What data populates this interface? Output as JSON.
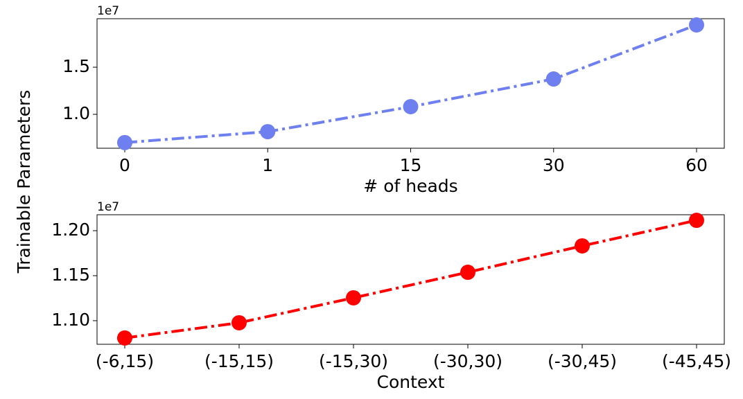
{
  "ylabel": "Trainable Parameters",
  "chart_data": [
    {
      "type": "line",
      "xlabel": "# of heads",
      "offset_text": "1e7",
      "categories": [
        "0",
        "1",
        "15",
        "30",
        "60"
      ],
      "series": [
        {
          "color": "#6e7ff0",
          "values": [
            7000000,
            8160000,
            10810000,
            13750000,
            19490000
          ]
        }
      ],
      "ylim": [
        6400000,
        20150000
      ],
      "yticks": [
        {
          "value": 10000000,
          "label": "1.0"
        },
        {
          "value": 15000000,
          "label": "1.5"
        }
      ]
    },
    {
      "type": "line",
      "xlabel": "Context",
      "offset_text": "1e7",
      "categories": [
        "(-6,15)",
        "(-15,15)",
        "(-15,30)",
        "(-30,30)",
        "(-30,45)",
        "(-45,45)"
      ],
      "series": [
        {
          "color": "#ff0000",
          "values": [
            10808000,
            10977000,
            11254000,
            11538000,
            11831000,
            12115000
          ]
        }
      ],
      "ylim": [
        10738000,
        12177000
      ],
      "yticks": [
        {
          "value": 11000000,
          "label": "1.10"
        },
        {
          "value": 11500000,
          "label": "1.15"
        },
        {
          "value": 12000000,
          "label": "1.20"
        }
      ]
    }
  ]
}
